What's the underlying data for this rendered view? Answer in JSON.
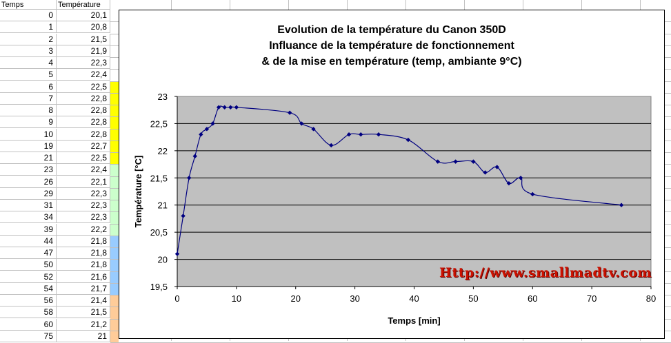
{
  "spreadsheet": {
    "headers": [
      "Temps",
      "Température"
    ],
    "rows": [
      [
        "0",
        "20,1"
      ],
      [
        "1",
        "20,8"
      ],
      [
        "2",
        "21,5"
      ],
      [
        "3",
        "21,9"
      ],
      [
        "4",
        "22,3"
      ],
      [
        "5",
        "22,4"
      ],
      [
        "6",
        "22,5"
      ],
      [
        "7",
        "22,8"
      ],
      [
        "8",
        "22,8"
      ],
      [
        "9",
        "22,8"
      ],
      [
        "10",
        "22,8"
      ],
      [
        "19",
        "22,7"
      ],
      [
        "21",
        "22,5"
      ],
      [
        "23",
        "22,4"
      ],
      [
        "26",
        "22,1"
      ],
      [
        "29",
        "22,3"
      ],
      [
        "31",
        "22,3"
      ],
      [
        "34",
        "22,3"
      ],
      [
        "39",
        "22,2"
      ],
      [
        "44",
        "21,8"
      ],
      [
        "47",
        "21,8"
      ],
      [
        "50",
        "21,8"
      ],
      [
        "52",
        "21,6"
      ],
      [
        "54",
        "21,7"
      ],
      [
        "56",
        "21,4"
      ],
      [
        "58",
        "21,5"
      ],
      [
        "60",
        "21,2"
      ],
      [
        "75",
        "21"
      ]
    ],
    "band_colors": [
      "#ffff00",
      "#ccffcc",
      "#99ccff",
      "#ffcc99"
    ]
  },
  "chart_data": {
    "type": "line",
    "title": [
      "Evolution de la température du Canon 350D",
      "Influance de la température de fonctionnement",
      "& de la mise en température (temp, ambiante 9°C)"
    ],
    "xlabel": "Temps [min]",
    "ylabel": "Température [°C]",
    "xlim": [
      0,
      80
    ],
    "ylim": [
      19.5,
      23
    ],
    "xticks": [
      "0",
      "10",
      "20",
      "30",
      "40",
      "50",
      "60",
      "70",
      "80"
    ],
    "yticks": [
      "19,5",
      "20",
      "20,5",
      "21",
      "21,5",
      "22",
      "22,5",
      "23"
    ],
    "grid": "horizontal",
    "plot_background": "#c0c0c0",
    "line_color": "#000080",
    "x": [
      0,
      1,
      2,
      3,
      4,
      5,
      6,
      7,
      8,
      9,
      10,
      19,
      21,
      23,
      26,
      29,
      31,
      34,
      39,
      44,
      47,
      50,
      52,
      54,
      56,
      58,
      60,
      75
    ],
    "values": [
      20.1,
      20.8,
      21.5,
      21.9,
      22.3,
      22.4,
      22.5,
      22.8,
      22.8,
      22.8,
      22.8,
      22.7,
      22.5,
      22.4,
      22.1,
      22.3,
      22.3,
      22.3,
      22.2,
      21.8,
      21.8,
      21.8,
      21.6,
      21.7,
      21.4,
      21.5,
      21.2,
      21.0
    ],
    "watermark": "Http://www.smallmadtv.com"
  }
}
